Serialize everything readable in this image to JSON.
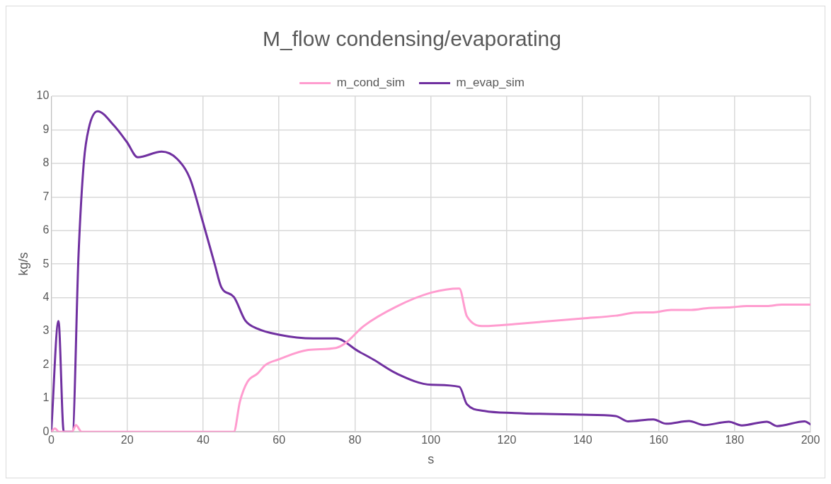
{
  "chart_data": {
    "type": "line",
    "title": "M_flow condensing/evaporating",
    "xlabel": "s",
    "ylabel": "kg/s",
    "legend": "top",
    "grid": true,
    "marker": "none",
    "line_style": "solid",
    "xlim": [
      0,
      200
    ],
    "xticks": [
      0,
      20,
      40,
      60,
      80,
      100,
      120,
      140,
      160,
      180,
      200
    ],
    "ylim": [
      0,
      10
    ],
    "yticks": [
      0,
      1,
      2,
      3,
      4,
      5,
      6,
      7,
      8,
      9,
      10
    ],
    "series": [
      {
        "name": "m_cond_sim",
        "color": "#ff9ccf",
        "x": [
          0,
          1,
          2,
          5.5,
          6.5,
          8,
          48.1,
          49.7,
          51.7,
          54.4,
          56.4,
          59.7,
          67.7,
          75,
          77.6,
          82.3,
          90.9,
          100.2,
          107.5,
          109.5,
          114.1,
          122.1,
          140,
          148.7,
          153.9,
          158.6,
          163.3,
          168.6,
          173.2,
          179.2,
          183.2,
          188.5,
          192.5,
          200
        ],
        "values": [
          0,
          0.1,
          0,
          0,
          0.2,
          0,
          0,
          0.9,
          1.49,
          1.74,
          1.99,
          2.15,
          2.44,
          2.5,
          2.65,
          3.15,
          3.73,
          4.15,
          4.27,
          3.44,
          3.15,
          3.21,
          3.38,
          3.46,
          3.55,
          3.56,
          3.63,
          3.63,
          3.69,
          3.71,
          3.75,
          3.75,
          3.79,
          3.79
        ]
      },
      {
        "name": "m_evap_sim",
        "color": "#7030a0",
        "x": [
          0,
          1.9,
          3.3,
          5.6,
          7.2,
          8.6,
          9.9,
          12.2,
          16.5,
          19.9,
          22.8,
          29.1,
          33.1,
          36.5,
          39.8,
          43.1,
          44.8,
          48.1,
          51.1,
          54.4,
          59.7,
          69,
          75,
          80.9,
          84.9,
          90.9,
          100.2,
          107.5,
          109.5,
          114.1,
          122.1,
          140,
          148.7,
          152,
          158.6,
          162,
          168,
          172,
          178.5,
          181.9,
          188.5,
          191.2,
          198.5,
          200
        ],
        "values": [
          0,
          3.3,
          0,
          0,
          5.3,
          8.05,
          9.05,
          9.55,
          9.13,
          8.64,
          8.18,
          8.35,
          8.14,
          7.56,
          6.31,
          4.98,
          4.31,
          4.02,
          3.32,
          3.07,
          2.9,
          2.78,
          2.78,
          2.4,
          2.15,
          1.74,
          1.4,
          1.34,
          0.82,
          0.62,
          0.56,
          0.51,
          0.47,
          0.31,
          0.37,
          0.24,
          0.32,
          0.2,
          0.3,
          0.19,
          0.3,
          0.17,
          0.31,
          0.22
        ]
      }
    ]
  }
}
